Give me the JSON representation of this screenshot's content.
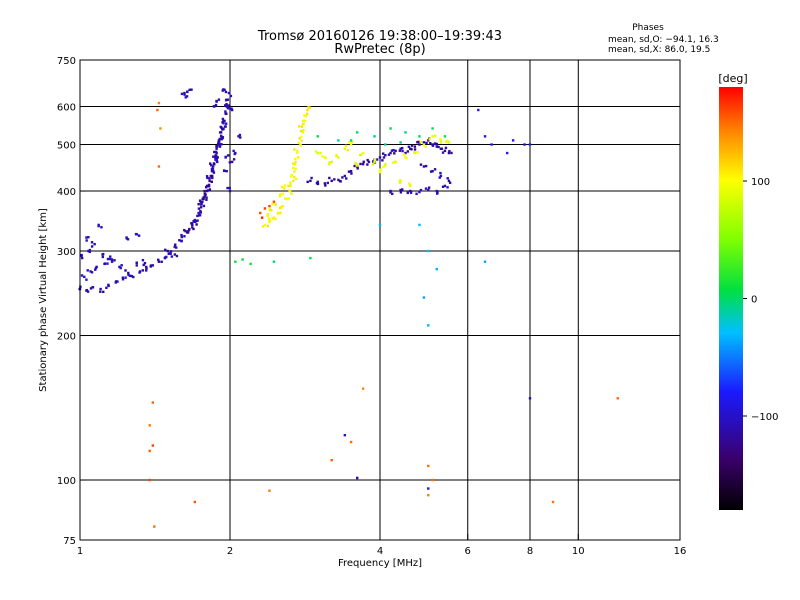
{
  "chart_data": {
    "type": "scatter",
    "title": "Tromsø 20160126 19:38:00–19:39:43",
    "subtitle": "RwPretec (8p)",
    "phases_info": {
      "heading": "Phases",
      "line_o": "mean, sd,O: −94.1, 16.3",
      "line_x": "mean, sd,X:  86.0, 19.5"
    },
    "xlabel": "Frequency [MHz]",
    "ylabel": "Stationary phase Virtual Height [km]",
    "xscale": "log",
    "yscale": "log",
    "xlim": [
      1,
      16
    ],
    "ylim": [
      75,
      750
    ],
    "xticks": [
      {
        "v": 1,
        "l": "1"
      },
      {
        "v": 2,
        "l": "2"
      },
      {
        "v": 4,
        "l": "4"
      },
      {
        "v": 6,
        "l": "6"
      },
      {
        "v": 8,
        "l": "8"
      },
      {
        "v": 10,
        "l": "10"
      },
      {
        "v": 16,
        "l": "16"
      }
    ],
    "xgrid": [
      2,
      4,
      6,
      8,
      10
    ],
    "yticks": [
      {
        "v": 75,
        "l": "75"
      },
      {
        "v": 100,
        "l": "100"
      },
      {
        "v": 200,
        "l": "200"
      },
      {
        "v": 300,
        "l": "300"
      },
      {
        "v": 400,
        "l": "400"
      },
      {
        "v": 500,
        "l": "500"
      },
      {
        "v": 600,
        "l": "600"
      },
      {
        "v": 750,
        "l": "750"
      }
    ],
    "ygrid": [
      100,
      200,
      300,
      400,
      500,
      600
    ],
    "colorbar": {
      "label": "[deg]",
      "range": [
        -180,
        180
      ],
      "ticks": [
        {
          "v": 100,
          "l": "100"
        },
        {
          "v": 0,
          "l": "0"
        },
        {
          "v": -100,
          "l": "−100"
        }
      ]
    },
    "clusters": [
      {
        "name": "o-low-lead",
        "phase": -105,
        "pts": [
          [
            1.0,
            250
          ],
          [
            1.03,
            248
          ],
          [
            1.06,
            252
          ],
          [
            1.1,
            250
          ],
          [
            1.14,
            255
          ],
          [
            1.18,
            258
          ],
          [
            1.22,
            262
          ],
          [
            1.27,
            266
          ],
          [
            1.32,
            272
          ],
          [
            1.36,
            276
          ],
          [
            1.02,
            265
          ],
          [
            1.05,
            272
          ],
          [
            1.08,
            278
          ],
          [
            1.12,
            282
          ],
          [
            1.16,
            285
          ],
          [
            1.2,
            278
          ],
          [
            1.25,
            270
          ],
          [
            1.3,
            280
          ],
          [
            1.35,
            283
          ],
          [
            1.01,
            290
          ],
          [
            1.04,
            300
          ],
          [
            1.07,
            310
          ],
          [
            1.11,
            295
          ],
          [
            1.15,
            292
          ],
          [
            1.09,
            340
          ],
          [
            1.03,
            320
          ],
          [
            1.24,
            320
          ],
          [
            1.3,
            325
          ]
        ]
      },
      {
        "name": "o-rise",
        "phase": -110,
        "pts": [
          [
            1.4,
            280
          ],
          [
            1.44,
            285
          ],
          [
            1.48,
            290
          ],
          [
            1.52,
            296
          ],
          [
            1.56,
            305
          ],
          [
            1.6,
            315
          ],
          [
            1.64,
            328
          ],
          [
            1.68,
            340
          ],
          [
            1.72,
            355
          ],
          [
            1.75,
            370
          ],
          [
            1.78,
            390
          ],
          [
            1.81,
            410
          ],
          [
            1.84,
            440
          ],
          [
            1.87,
            470
          ],
          [
            1.9,
            500
          ],
          [
            1.93,
            540
          ],
          [
            1.96,
            580
          ],
          [
            1.98,
            620
          ],
          [
            2.0,
            400
          ],
          [
            1.5,
            300
          ],
          [
            1.55,
            295
          ],
          [
            1.62,
            322
          ],
          [
            1.7,
            348
          ],
          [
            1.76,
            380
          ],
          [
            1.82,
            425
          ],
          [
            1.88,
            480
          ],
          [
            1.94,
            560
          ],
          [
            1.86,
            600
          ],
          [
            1.92,
            520
          ],
          [
            1.97,
            440
          ]
        ]
      },
      {
        "name": "o-dense",
        "phase": -115,
        "pts": [
          [
            1.65,
            330
          ],
          [
            1.68,
            336
          ],
          [
            1.7,
            345
          ],
          [
            1.73,
            360
          ],
          [
            1.75,
            375
          ],
          [
            1.77,
            385
          ],
          [
            1.8,
            400
          ],
          [
            1.82,
            420
          ],
          [
            1.85,
            450
          ],
          [
            1.88,
            490
          ],
          [
            1.9,
            510
          ],
          [
            1.92,
            530
          ],
          [
            1.95,
            560
          ],
          [
            1.97,
            600
          ],
          [
            1.99,
            640
          ],
          [
            1.8,
            410
          ],
          [
            1.83,
            430
          ],
          [
            1.86,
            455
          ],
          [
            1.89,
            470
          ],
          [
            1.91,
            495
          ],
          [
            1.93,
            515
          ],
          [
            1.96,
            545
          ],
          [
            1.78,
            395
          ],
          [
            1.84,
            445
          ],
          [
            1.87,
            465
          ]
        ]
      },
      {
        "name": "o-upper",
        "phase": -110,
        "pts": [
          [
            1.62,
            640
          ],
          [
            1.64,
            630
          ],
          [
            1.66,
            650
          ],
          [
            1.9,
            620
          ],
          [
            1.95,
            650
          ],
          [
            1.98,
            600
          ],
          [
            2.02,
            590
          ],
          [
            2.05,
            480
          ],
          [
            2.02,
            460
          ],
          [
            1.96,
            470
          ],
          [
            2.08,
            520
          ]
        ]
      },
      {
        "name": "x-yellow-curve",
        "phase": 100,
        "pts": [
          [
            2.35,
            340
          ],
          [
            2.4,
            345
          ],
          [
            2.45,
            352
          ],
          [
            2.5,
            360
          ],
          [
            2.55,
            372
          ],
          [
            2.6,
            385
          ],
          [
            2.64,
            400
          ],
          [
            2.68,
            420
          ],
          [
            2.71,
            445
          ],
          [
            2.74,
            470
          ],
          [
            2.77,
            500
          ],
          [
            2.8,
            530
          ],
          [
            2.83,
            560
          ],
          [
            2.86,
            590
          ],
          [
            2.38,
            355
          ],
          [
            2.42,
            365
          ],
          [
            2.47,
            375
          ],
          [
            2.52,
            390
          ],
          [
            2.57,
            405
          ],
          [
            2.62,
            410
          ],
          [
            2.66,
            432
          ],
          [
            2.7,
            455
          ],
          [
            2.73,
            485
          ],
          [
            2.76,
            515
          ],
          [
            2.79,
            545
          ],
          [
            2.82,
            575
          ]
        ]
      },
      {
        "name": "x-red-nose",
        "phase": 170,
        "pts": [
          [
            2.3,
            360
          ],
          [
            2.35,
            368
          ],
          [
            2.4,
            372
          ],
          [
            2.32,
            352
          ],
          [
            2.45,
            380
          ]
        ]
      },
      {
        "name": "o-band-420",
        "phase": -115,
        "pts": [
          [
            2.9,
            420
          ],
          [
            3.0,
            418
          ],
          [
            3.1,
            415
          ],
          [
            3.2,
            420
          ],
          [
            3.3,
            422
          ],
          [
            3.4,
            430
          ],
          [
            3.5,
            440
          ],
          [
            3.6,
            450
          ],
          [
            3.7,
            455
          ],
          [
            3.8,
            460
          ],
          [
            3.9,
            465
          ],
          [
            4.0,
            470
          ],
          [
            4.1,
            475
          ],
          [
            4.2,
            480
          ],
          [
            4.3,
            485
          ],
          [
            4.4,
            490
          ],
          [
            4.5,
            480
          ],
          [
            4.6,
            490
          ],
          [
            4.7,
            495
          ],
          [
            4.8,
            500
          ],
          [
            4.9,
            505
          ],
          [
            5.0,
            510
          ],
          [
            5.1,
            500
          ],
          [
            5.2,
            495
          ],
          [
            5.3,
            490
          ],
          [
            5.4,
            485
          ],
          [
            5.5,
            480
          ]
        ]
      },
      {
        "name": "o-band-400",
        "phase": -110,
        "pts": [
          [
            4.2,
            400
          ],
          [
            4.4,
            402
          ],
          [
            4.6,
            400
          ],
          [
            4.8,
            398
          ],
          [
            5.0,
            402
          ],
          [
            5.2,
            400
          ],
          [
            5.4,
            410
          ],
          [
            5.5,
            420
          ],
          [
            5.3,
            430
          ],
          [
            5.1,
            440
          ],
          [
            4.9,
            450
          ]
        ]
      },
      {
        "name": "yellow-band-450",
        "phase": 95,
        "pts": [
          [
            3.0,
            480
          ],
          [
            3.1,
            470
          ],
          [
            3.2,
            460
          ],
          [
            3.3,
            470
          ],
          [
            3.4,
            490
          ],
          [
            3.5,
            500
          ],
          [
            3.7,
            480
          ],
          [
            3.9,
            460
          ],
          [
            4.1,
            455
          ],
          [
            4.3,
            460
          ],
          [
            4.5,
            470
          ],
          [
            4.7,
            480
          ],
          [
            4.9,
            500
          ],
          [
            5.1,
            520
          ],
          [
            5.3,
            510
          ],
          [
            5.5,
            505
          ],
          [
            3.6,
            455
          ],
          [
            4.0,
            440
          ],
          [
            4.4,
            420
          ],
          [
            4.6,
            410
          ]
        ]
      },
      {
        "name": "upper-mixed",
        "phase": 0,
        "pts": [
          [
            3.0,
            520
          ],
          [
            3.3,
            510
          ],
          [
            3.6,
            530
          ],
          [
            3.9,
            520
          ],
          [
            4.2,
            540
          ],
          [
            4.5,
            530
          ],
          [
            4.8,
            520
          ],
          [
            5.1,
            540
          ],
          [
            5.4,
            520
          ],
          [
            3.5,
            510
          ],
          [
            4.1,
            500
          ],
          [
            4.4,
            505
          ]
        ]
      },
      {
        "name": "sparse-pairs",
        "phase": -90,
        "pts": [
          [
            6.5,
            520
          ],
          [
            6.7,
            500
          ],
          [
            7.2,
            480
          ],
          [
            7.4,
            510
          ],
          [
            7.8,
            500
          ],
          [
            8.0,
            500
          ],
          [
            6.3,
            590
          ]
        ]
      },
      {
        "name": "green-low",
        "phase": 10,
        "pts": [
          [
            2.05,
            285
          ],
          [
            2.12,
            288
          ],
          [
            2.2,
            282
          ],
          [
            2.45,
            285
          ],
          [
            2.9,
            290
          ]
        ]
      },
      {
        "name": "stray-mid",
        "phase": -30,
        "pts": [
          [
            4.8,
            340
          ],
          [
            5.0,
            300
          ],
          [
            4.9,
            240
          ],
          [
            5.0,
            210
          ],
          [
            6.5,
            285
          ],
          [
            5.2,
            275
          ],
          [
            4.0,
            340
          ]
        ]
      },
      {
        "name": "stray-low",
        "phase": 150,
        "pts": [
          [
            1.4,
            145
          ],
          [
            1.38,
            130
          ],
          [
            1.4,
            118
          ],
          [
            1.38,
            100
          ],
          [
            1.41,
            80
          ],
          [
            1.38,
            115
          ],
          [
            1.7,
            90
          ],
          [
            2.4,
            95
          ],
          [
            3.2,
            110
          ],
          [
            3.5,
            120
          ],
          [
            3.7,
            155
          ],
          [
            5.0,
            107
          ],
          [
            5.1,
            100
          ],
          [
            8.9,
            90
          ],
          [
            12.0,
            148
          ],
          [
            5.0,
            93
          ],
          [
            3.6,
            101
          ]
        ]
      },
      {
        "name": "stray-low-cool",
        "phase": -100,
        "pts": [
          [
            3.4,
            124
          ],
          [
            8.0,
            148
          ],
          [
            5.0,
            96
          ],
          [
            3.6,
            101
          ]
        ]
      },
      {
        "name": "red-top",
        "phase": 140,
        "pts": [
          [
            1.44,
            610
          ],
          [
            1.43,
            590
          ],
          [
            1.45,
            540
          ],
          [
            1.44,
            450
          ]
        ]
      }
    ]
  }
}
